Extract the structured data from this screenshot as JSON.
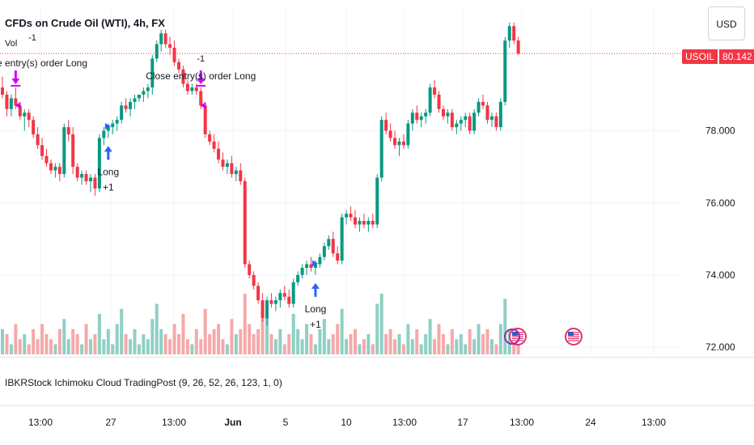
{
  "header": {
    "title": "CFDs on Crude Oil (WTI), 4h, FX",
    "volume_label": "Vol",
    "currency_button": "USD"
  },
  "indicator_label": "IBKRStock Ichimoku Cloud TradingPost (9, 26, 52, 26, 123, 1, 0)",
  "price_tag": {
    "symbol": "USOIL",
    "price": "80.142",
    "color": "#f23645"
  },
  "colors": {
    "up": "#089981",
    "down": "#f23645",
    "vol_up": "#8fd0c3",
    "vol_down": "#f5a9a9",
    "signal_long": "#2962ff",
    "signal_close": "#d500f9"
  },
  "chart_data": {
    "type": "candlestick",
    "y_axis": {
      "ticks": [
        "72.000",
        "74.000",
        "76.000",
        "78.000"
      ],
      "ylim": [
        71.8,
        81.4
      ]
    },
    "x_axis": {
      "ticks": [
        "13:00",
        "27",
        "13:00",
        "Jun",
        "5",
        "10",
        "13:00",
        "17",
        "13:00",
        "24",
        "13:00"
      ]
    },
    "last_price": 80.142,
    "candles": [
      [
        79.2,
        79.5,
        78.9,
        79.0
      ],
      [
        79.0,
        79.1,
        78.4,
        78.6
      ],
      [
        78.6,
        79.0,
        78.4,
        78.9
      ],
      [
        78.9,
        79.2,
        78.6,
        78.7
      ],
      [
        78.7,
        78.8,
        78.3,
        78.4
      ],
      [
        78.4,
        78.6,
        78.0,
        78.5
      ],
      [
        78.5,
        78.6,
        78.1,
        78.3
      ],
      [
        78.3,
        78.4,
        77.8,
        77.9
      ],
      [
        77.9,
        78.1,
        77.5,
        77.6
      ],
      [
        77.6,
        77.8,
        77.2,
        77.3
      ],
      [
        77.3,
        77.5,
        77.0,
        77.1
      ],
      [
        77.1,
        77.2,
        76.8,
        76.9
      ],
      [
        76.9,
        77.1,
        76.7,
        77.0
      ],
      [
        77.0,
        77.1,
        76.6,
        76.8
      ],
      [
        76.8,
        78.2,
        76.7,
        78.1
      ],
      [
        78.1,
        78.3,
        77.7,
        77.9
      ],
      [
        77.9,
        78.1,
        76.8,
        77.0
      ],
      [
        77.0,
        77.1,
        76.6,
        76.7
      ],
      [
        76.7,
        76.9,
        76.5,
        76.8
      ],
      [
        76.8,
        76.9,
        76.5,
        76.6
      ],
      [
        76.6,
        76.8,
        76.3,
        76.7
      ],
      [
        76.7,
        76.8,
        76.2,
        76.4
      ],
      [
        76.4,
        77.9,
        76.3,
        77.8
      ],
      [
        77.8,
        78.1,
        77.6,
        78.0
      ],
      [
        78.0,
        78.2,
        77.8,
        78.1
      ],
      [
        78.1,
        78.3,
        77.9,
        78.2
      ],
      [
        78.2,
        78.4,
        78.0,
        78.3
      ],
      [
        78.3,
        78.8,
        78.2,
        78.7
      ],
      [
        78.7,
        78.9,
        78.5,
        78.6
      ],
      [
        78.6,
        78.9,
        78.4,
        78.8
      ],
      [
        78.8,
        79.0,
        78.6,
        78.9
      ],
      [
        78.9,
        79.0,
        78.8,
        79.0
      ],
      [
        79.0,
        79.2,
        78.8,
        79.1
      ],
      [
        79.1,
        79.3,
        78.9,
        79.2
      ],
      [
        79.2,
        80.1,
        79.0,
        80.0
      ],
      [
        80.0,
        80.5,
        79.9,
        80.4
      ],
      [
        80.4,
        80.8,
        80.2,
        80.7
      ],
      [
        80.7,
        80.8,
        80.3,
        80.4
      ],
      [
        80.4,
        80.6,
        80.1,
        80.3
      ],
      [
        80.3,
        80.5,
        79.8,
        79.9
      ],
      [
        79.9,
        80.0,
        79.6,
        79.7
      ],
      [
        79.7,
        79.8,
        79.2,
        79.3
      ],
      [
        79.3,
        79.4,
        79.0,
        79.1
      ],
      [
        79.1,
        79.3,
        79.0,
        79.2
      ],
      [
        79.2,
        79.3,
        79.0,
        79.1
      ],
      [
        79.1,
        79.2,
        78.6,
        78.7
      ],
      [
        78.7,
        78.8,
        77.8,
        77.9
      ],
      [
        77.9,
        78.0,
        77.6,
        77.7
      ],
      [
        77.7,
        77.9,
        77.4,
        77.5
      ],
      [
        77.5,
        77.7,
        77.1,
        77.2
      ],
      [
        77.2,
        77.4,
        76.9,
        77.0
      ],
      [
        77.0,
        77.2,
        76.8,
        77.1
      ],
      [
        77.1,
        77.3,
        76.7,
        76.8
      ],
      [
        76.8,
        77.0,
        76.6,
        76.9
      ],
      [
        76.9,
        77.1,
        76.5,
        76.6
      ],
      [
        76.6,
        76.7,
        74.2,
        74.3
      ],
      [
        74.3,
        74.4,
        73.9,
        74.0
      ],
      [
        74.0,
        74.1,
        73.6,
        73.7
      ],
      [
        73.7,
        73.8,
        73.2,
        73.3
      ],
      [
        73.3,
        73.5,
        72.7,
        72.8
      ],
      [
        72.8,
        73.4,
        72.6,
        73.3
      ],
      [
        73.3,
        73.5,
        73.1,
        73.2
      ],
      [
        73.2,
        73.4,
        73.0,
        73.3
      ],
      [
        73.3,
        73.6,
        73.1,
        73.5
      ],
      [
        73.5,
        73.7,
        73.3,
        73.4
      ],
      [
        73.4,
        73.6,
        73.1,
        73.2
      ],
      [
        73.2,
        73.9,
        73.1,
        73.8
      ],
      [
        73.8,
        74.1,
        73.7,
        74.0
      ],
      [
        74.0,
        74.3,
        73.9,
        74.2
      ],
      [
        74.2,
        74.4,
        74.0,
        74.3
      ],
      [
        74.3,
        74.5,
        74.1,
        74.2
      ],
      [
        74.2,
        74.4,
        74.0,
        74.3
      ],
      [
        74.3,
        74.6,
        74.2,
        74.5
      ],
      [
        74.5,
        74.9,
        74.4,
        74.8
      ],
      [
        74.8,
        75.1,
        74.7,
        75.0
      ],
      [
        75.0,
        75.2,
        74.5,
        74.6
      ],
      [
        74.6,
        74.8,
        74.3,
        74.4
      ],
      [
        74.4,
        75.7,
        74.3,
        75.6
      ],
      [
        75.6,
        75.8,
        75.4,
        75.7
      ],
      [
        75.7,
        75.9,
        75.5,
        75.6
      ],
      [
        75.6,
        75.8,
        75.3,
        75.4
      ],
      [
        75.4,
        75.6,
        75.2,
        75.5
      ],
      [
        75.5,
        75.7,
        75.3,
        75.4
      ],
      [
        75.4,
        75.6,
        75.2,
        75.5
      ],
      [
        75.5,
        75.7,
        75.3,
        75.4
      ],
      [
        75.4,
        76.8,
        75.3,
        76.7
      ],
      [
        76.7,
        78.4,
        76.6,
        78.3
      ],
      [
        78.3,
        78.5,
        77.9,
        78.0
      ],
      [
        78.0,
        78.2,
        77.7,
        77.8
      ],
      [
        77.8,
        78.0,
        77.5,
        77.6
      ],
      [
        77.6,
        77.8,
        77.3,
        77.7
      ],
      [
        77.7,
        77.9,
        77.5,
        77.6
      ],
      [
        77.6,
        78.3,
        77.5,
        78.2
      ],
      [
        78.2,
        78.6,
        78.0,
        78.5
      ],
      [
        78.5,
        78.7,
        78.2,
        78.3
      ],
      [
        78.3,
        78.5,
        78.1,
        78.4
      ],
      [
        78.4,
        78.6,
        78.2,
        78.5
      ],
      [
        78.5,
        79.3,
        78.4,
        79.2
      ],
      [
        79.2,
        79.4,
        78.9,
        79.0
      ],
      [
        79.0,
        79.1,
        78.5,
        78.6
      ],
      [
        78.6,
        78.7,
        78.3,
        78.4
      ],
      [
        78.4,
        78.6,
        78.2,
        78.5
      ],
      [
        78.5,
        78.6,
        78.0,
        78.1
      ],
      [
        78.1,
        78.3,
        77.9,
        78.2
      ],
      [
        78.2,
        78.4,
        78.0,
        78.3
      ],
      [
        78.3,
        78.5,
        78.1,
        78.4
      ],
      [
        78.4,
        78.5,
        77.9,
        78.0
      ],
      [
        78.0,
        78.6,
        77.9,
        78.5
      ],
      [
        78.5,
        78.9,
        78.4,
        78.8
      ],
      [
        78.8,
        79.0,
        78.6,
        78.7
      ],
      [
        78.7,
        78.8,
        78.2,
        78.3
      ],
      [
        78.3,
        78.5,
        78.1,
        78.4
      ],
      [
        78.4,
        78.5,
        78.0,
        78.1
      ],
      [
        78.1,
        78.9,
        78.0,
        78.8
      ],
      [
        78.8,
        80.6,
        78.7,
        80.5
      ],
      [
        80.5,
        81.0,
        80.3,
        80.9
      ],
      [
        80.9,
        81.0,
        80.4,
        80.5
      ],
      [
        80.5,
        80.6,
        80.1,
        80.142
      ]
    ],
    "volume": [
      [
        5,
        1
      ],
      [
        4,
        0
      ],
      [
        2,
        1
      ],
      [
        6,
        0
      ],
      [
        3,
        0
      ],
      [
        4,
        1
      ],
      [
        2,
        0
      ],
      [
        5,
        0
      ],
      [
        3,
        0
      ],
      [
        6,
        0
      ],
      [
        4,
        0
      ],
      [
        3,
        0
      ],
      [
        2,
        1
      ],
      [
        5,
        0
      ],
      [
        7,
        1
      ],
      [
        3,
        1
      ],
      [
        5,
        0
      ],
      [
        4,
        0
      ],
      [
        2,
        1
      ],
      [
        6,
        0
      ],
      [
        3,
        1
      ],
      [
        4,
        0
      ],
      [
        8,
        1
      ],
      [
        3,
        1
      ],
      [
        5,
        1
      ],
      [
        2,
        1
      ],
      [
        6,
        1
      ],
      [
        9,
        1
      ],
      [
        4,
        0
      ],
      [
        3,
        1
      ],
      [
        5,
        1
      ],
      [
        2,
        1
      ],
      [
        4,
        1
      ],
      [
        3,
        1
      ],
      [
        7,
        1
      ],
      [
        10,
        1
      ],
      [
        5,
        1
      ],
      [
        4,
        0
      ],
      [
        3,
        0
      ],
      [
        6,
        0
      ],
      [
        4,
        0
      ],
      [
        8,
        0
      ],
      [
        3,
        0
      ],
      [
        2,
        1
      ],
      [
        5,
        0
      ],
      [
        3,
        0
      ],
      [
        9,
        0
      ],
      [
        4,
        0
      ],
      [
        5,
        0
      ],
      [
        6,
        0
      ],
      [
        3,
        0
      ],
      [
        2,
        1
      ],
      [
        7,
        0
      ],
      [
        4,
        1
      ],
      [
        5,
        0
      ],
      [
        12,
        0
      ],
      [
        6,
        0
      ],
      [
        4,
        0
      ],
      [
        5,
        0
      ],
      [
        7,
        0
      ],
      [
        10,
        1
      ],
      [
        4,
        0
      ],
      [
        3,
        1
      ],
      [
        5,
        1
      ],
      [
        2,
        0
      ],
      [
        4,
        0
      ],
      [
        8,
        1
      ],
      [
        5,
        1
      ],
      [
        3,
        1
      ],
      [
        6,
        1
      ],
      [
        4,
        0
      ],
      [
        2,
        1
      ],
      [
        5,
        1
      ],
      [
        7,
        1
      ],
      [
        3,
        1
      ],
      [
        4,
        0
      ],
      [
        6,
        0
      ],
      [
        9,
        1
      ],
      [
        3,
        1
      ],
      [
        4,
        0
      ],
      [
        5,
        0
      ],
      [
        2,
        1
      ],
      [
        3,
        0
      ],
      [
        4,
        1
      ],
      [
        2,
        0
      ],
      [
        10,
        1
      ],
      [
        12,
        1
      ],
      [
        4,
        0
      ],
      [
        5,
        0
      ],
      [
        3,
        0
      ],
      [
        4,
        1
      ],
      [
        2,
        0
      ],
      [
        6,
        1
      ],
      [
        3,
        1
      ],
      [
        5,
        0
      ],
      [
        2,
        1
      ],
      [
        4,
        1
      ],
      [
        7,
        1
      ],
      [
        3,
        0
      ],
      [
        6,
        0
      ],
      [
        4,
        0
      ],
      [
        2,
        1
      ],
      [
        5,
        0
      ],
      [
        3,
        1
      ],
      [
        4,
        1
      ],
      [
        2,
        1
      ],
      [
        5,
        0
      ],
      [
        3,
        1
      ],
      [
        6,
        1
      ],
      [
        4,
        0
      ],
      [
        5,
        0
      ],
      [
        3,
        1
      ],
      [
        2,
        0
      ],
      [
        6,
        1
      ],
      [
        11,
        1
      ],
      [
        5,
        1
      ],
      [
        4,
        0
      ],
      [
        3,
        0
      ]
    ],
    "signals": [
      {
        "kind": "close",
        "index": 3,
        "label": "Close entry(s) order Long",
        "qty": "-1",
        "label_top": true
      },
      {
        "kind": "long",
        "index": 24,
        "label": "Long",
        "qty": "+1"
      },
      {
        "kind": "close",
        "index": 45,
        "label": "Close entry(s) order Long",
        "qty": "-1",
        "label_top": true
      },
      {
        "kind": "long",
        "index": 71,
        "label": "Long",
        "qty": "+1"
      }
    ]
  }
}
